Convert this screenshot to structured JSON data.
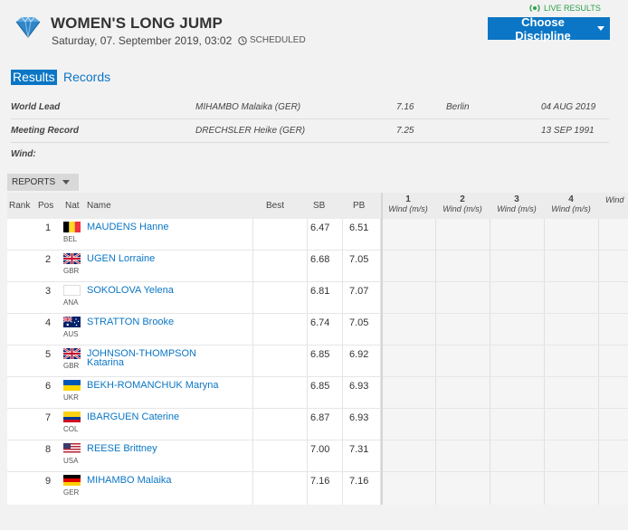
{
  "header": {
    "title": "WOMEN'S LONG JUMP",
    "subtitle": "Saturday, 07. September 2019, 03:02",
    "status": "SCHEDULED",
    "live_label": "LIVE RESULTS",
    "choose_button": "Choose Discipline"
  },
  "tabs": [
    {
      "label": "Results",
      "active": true
    },
    {
      "label": "Records",
      "active": false
    }
  ],
  "records": [
    {
      "label": "World Lead",
      "athlete": "MIHAMBO Malaika (GER)",
      "mark": "7.16",
      "venue": "Berlin",
      "date": "04 AUG 2019"
    },
    {
      "label": "Meeting Record",
      "athlete": "DRECHSLER Heike (GER)",
      "mark": "7.25",
      "venue": "",
      "date": "13 SEP 1991"
    }
  ],
  "wind_label": "Wind:",
  "reports_label": "REPORTS",
  "table": {
    "columns": {
      "rank": "Rank",
      "pos": "Pos",
      "nat": "Nat",
      "name": "Name",
      "best": "Best",
      "sb": "SB",
      "pb": "PB"
    },
    "attempts": [
      {
        "num": "1",
        "wind": "Wind (m/s)"
      },
      {
        "num": "2",
        "wind": "Wind (m/s)"
      },
      {
        "num": "3",
        "wind": "Wind (m/s)"
      },
      {
        "num": "4",
        "wind": "Wind (m/s)"
      },
      {
        "num": "",
        "wind": "Wind"
      }
    ],
    "rows": [
      {
        "pos": "1",
        "nat": "BEL",
        "name": "MAUDENS Hanne",
        "sb": "6.47",
        "pb": "6.51"
      },
      {
        "pos": "2",
        "nat": "GBR",
        "name": "UGEN Lorraine",
        "sb": "6.68",
        "pb": "7.05"
      },
      {
        "pos": "3",
        "nat": "ANA",
        "name": "SOKOLOVA Yelena",
        "sb": "6.81",
        "pb": "7.07"
      },
      {
        "pos": "4",
        "nat": "AUS",
        "name": "STRATTON Brooke",
        "sb": "6.74",
        "pb": "7.05"
      },
      {
        "pos": "5",
        "nat": "GBR",
        "name": "JOHNSON-THOMPSON Katarina",
        "sb": "6.85",
        "pb": "6.92"
      },
      {
        "pos": "6",
        "nat": "UKR",
        "name": "BEKH-ROMANCHUK Maryna",
        "sb": "6.85",
        "pb": "6.93"
      },
      {
        "pos": "7",
        "nat": "COL",
        "name": "IBARGUEN Caterine",
        "sb": "6.87",
        "pb": "6.93"
      },
      {
        "pos": "8",
        "nat": "USA",
        "name": "REESE Brittney",
        "sb": "7.00",
        "pb": "7.31"
      },
      {
        "pos": "9",
        "nat": "GER",
        "name": "MIHAMBO Malaika",
        "sb": "7.16",
        "pb": "7.16"
      }
    ]
  },
  "colors": {
    "accent": "#0b76c5",
    "live": "#2ea04a"
  }
}
